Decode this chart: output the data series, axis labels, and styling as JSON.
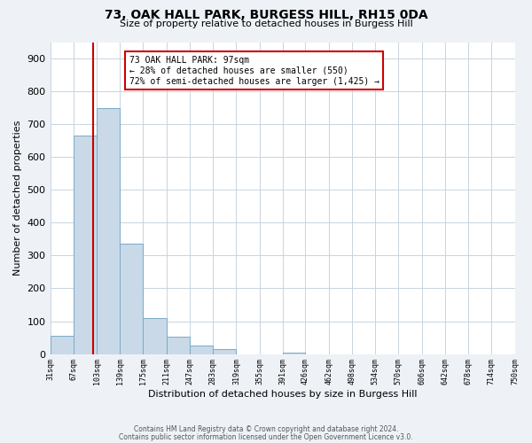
{
  "title1": "73, OAK HALL PARK, BURGESS HILL, RH15 0DA",
  "title2": "Size of property relative to detached houses in Burgess Hill",
  "xlabel": "Distribution of detached houses by size in Burgess Hill",
  "ylabel": "Number of detached properties",
  "bar_edges": [
    31,
    67,
    103,
    139,
    175,
    211,
    247,
    283,
    319,
    355,
    391,
    426,
    462,
    498,
    534,
    570,
    606,
    642,
    678,
    714,
    750
  ],
  "bar_heights": [
    55,
    665,
    750,
    335,
    110,
    52,
    27,
    14,
    0,
    0,
    5,
    0,
    0,
    0,
    0,
    0,
    0,
    0,
    0,
    0
  ],
  "bar_color": "#c9d9e8",
  "bar_edge_color": "#7aaac8",
  "property_line_x": 97,
  "property_line_color": "#cc0000",
  "annotation_line1": "73 OAK HALL PARK: 97sqm",
  "annotation_line2": "← 28% of detached houses are smaller (550)",
  "annotation_line3": "72% of semi-detached houses are larger (1,425) →",
  "annotation_box_color": "#cc0000",
  "ylim": [
    0,
    950
  ],
  "yticks": [
    0,
    100,
    200,
    300,
    400,
    500,
    600,
    700,
    800,
    900
  ],
  "xtick_labels": [
    "31sqm",
    "67sqm",
    "103sqm",
    "139sqm",
    "175sqm",
    "211sqm",
    "247sqm",
    "283sqm",
    "319sqm",
    "355sqm",
    "391sqm",
    "426sqm",
    "462sqm",
    "498sqm",
    "534sqm",
    "570sqm",
    "606sqm",
    "642sqm",
    "678sqm",
    "714sqm",
    "750sqm"
  ],
  "footnote1": "Contains HM Land Registry data © Crown copyright and database right 2024.",
  "footnote2": "Contains public sector information licensed under the Open Government Licence v3.0.",
  "bg_color": "#eef2f7",
  "plot_bg_color": "#ffffff",
  "grid_color": "#c8d4e0",
  "ytick_fontsize": 8,
  "xtick_fontsize": 6,
  "ylabel_fontsize": 8,
  "xlabel_fontsize": 8,
  "title1_fontsize": 10,
  "title2_fontsize": 8,
  "footnote_fontsize": 5.5
}
